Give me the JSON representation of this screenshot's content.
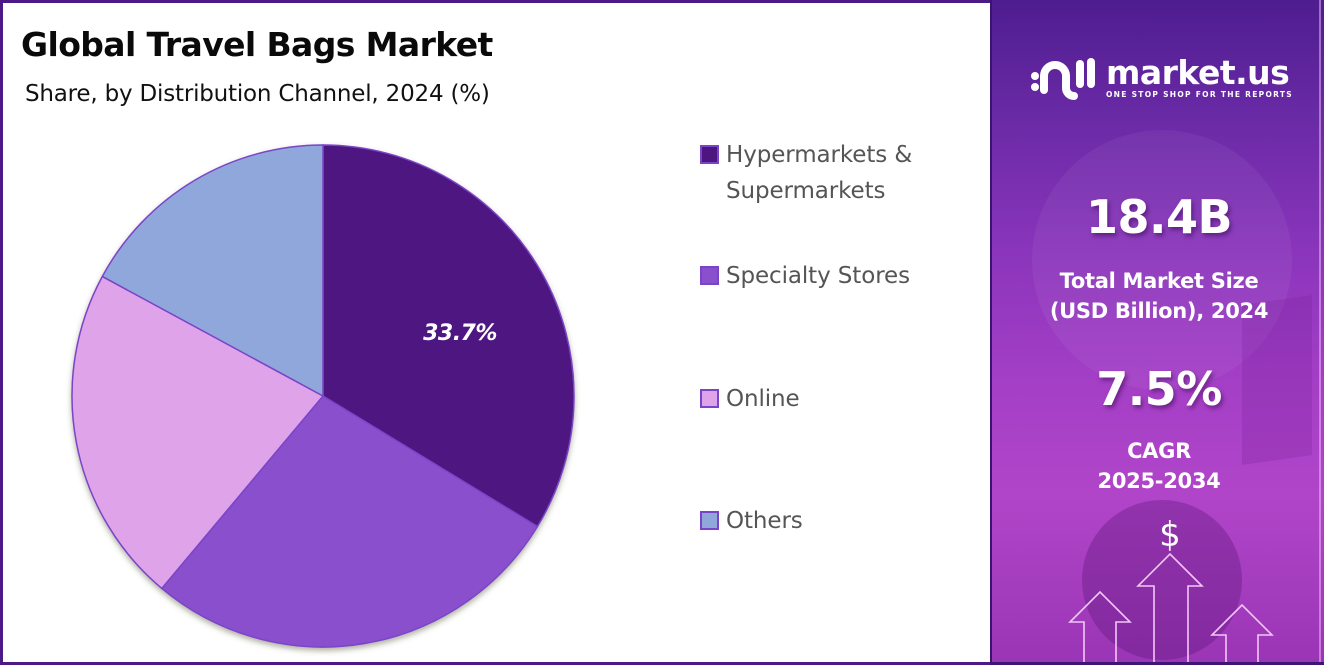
{
  "header": {
    "title": "Global Travel Bags Market",
    "subtitle": "Share, by Distribution Channel, 2024 (%)"
  },
  "legend": {
    "items": [
      {
        "label_line1": "Hypermarkets &",
        "label_line2": "Supermarkets",
        "color": "#4e1581"
      },
      {
        "label_line1": "Specialty Stores",
        "label_line2": "",
        "color": "#8a4fcc"
      },
      {
        "label_line1": "Online",
        "label_line2": "",
        "color": "#dfa3e9"
      },
      {
        "label_line1": "Others",
        "label_line2": "",
        "color": "#8fa7db"
      }
    ]
  },
  "pie": {
    "highlight_label": "33.7%"
  },
  "brand": {
    "name": "market.us",
    "tagline": "ONE STOP SHOP FOR THE REPORTS"
  },
  "stats": {
    "market_size_value": "18.4B",
    "market_size_label_line1": "Total Market Size",
    "market_size_label_line2": "(USD Billion), 2024",
    "cagr_value": "7.5%",
    "cagr_label_line1": "CAGR",
    "cagr_label_line2": "2025-2034",
    "dollar_symbol": "$"
  },
  "colors": {
    "accent_dark": "#4b1a86",
    "hypermarkets": "#4e1581",
    "specialty": "#8a4fcc",
    "online": "#dfa3e9",
    "others": "#8fa7db"
  },
  "chart_data": {
    "type": "pie",
    "title": "Global Travel Bags Market",
    "subtitle": "Share, by Distribution Channel, 2024 (%)",
    "categories": [
      "Hypermarkets & Supermarkets",
      "Specialty Stores",
      "Online",
      "Others"
    ],
    "values": [
      33.7,
      27.4,
      21.8,
      17.1
    ],
    "labeled_values": {
      "Hypermarkets & Supermarkets": "33.7%"
    },
    "colors": [
      "#4e1581",
      "#8a4fcc",
      "#dfa3e9",
      "#8fa7db"
    ],
    "start_angle_deg": 0,
    "direction": "clockwise",
    "legend_position": "right",
    "unit": "%"
  }
}
